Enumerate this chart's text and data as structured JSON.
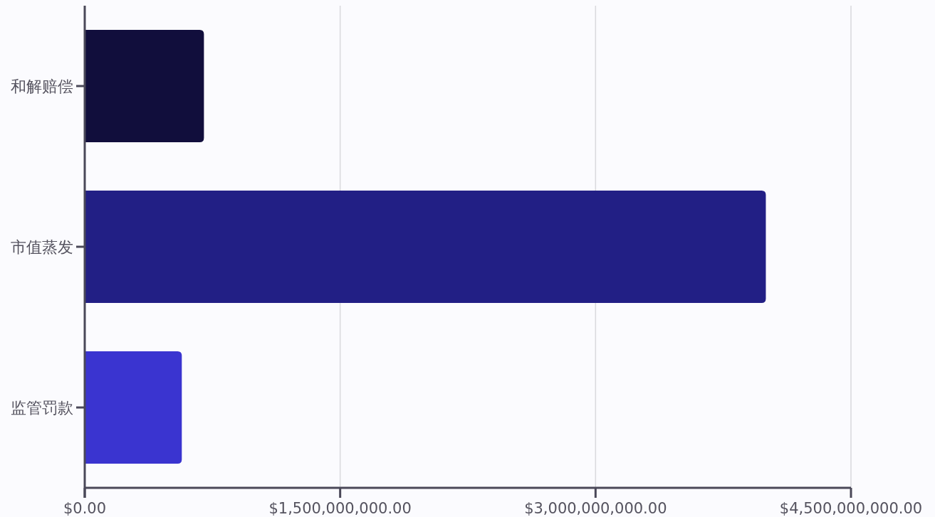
{
  "chart_data": {
    "type": "bar",
    "orientation": "horizontal",
    "categories": [
      "和解赔偿",
      "市值蒸发",
      "监管罚款"
    ],
    "values": [
      700000000,
      4000000000,
      570000000
    ],
    "colors": [
      "#110e3c",
      "#221f85",
      "#3a34d0"
    ],
    "xlim": [
      0,
      4500000000
    ],
    "xticks": [
      {
        "value": 0,
        "label": "$0.00"
      },
      {
        "value": 1500000000,
        "label": "$1,500,000,000.00"
      },
      {
        "value": 3000000000,
        "label": "$3,000,000,000.00"
      },
      {
        "value": 4500000000,
        "label": "$4,500,000,000.00"
      }
    ],
    "grid": "x"
  }
}
